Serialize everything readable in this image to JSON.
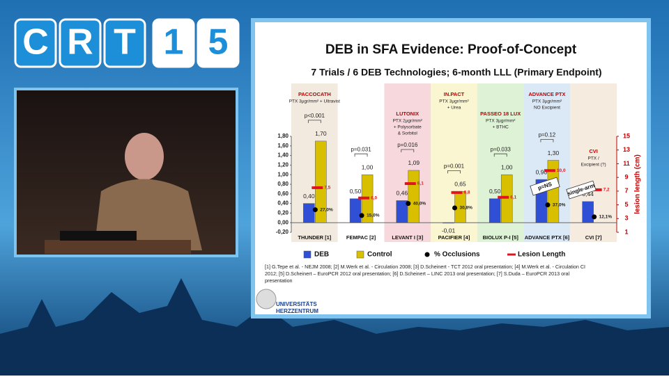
{
  "logo": [
    "C",
    "R",
    "T",
    "1",
    "5"
  ],
  "slide": {
    "title": "DEB in SFA Evidence: Proof-of-Concept",
    "subtitle": "7 Trials / 6 DEB Technologies; 6-month LLL (Primary Endpoint)",
    "references": [
      "[1] G.Tepe et al. - NEJM  2008;   [2] M.Werk et al. - Circulation 2008;   [3] D.Scheinert - TCT 2012 oral presentation;   [4] M.Werk et al. - Circulation CI",
      "2012;   [5] D.Scheinert – EuroPCR 2012 oral presentation;   [6] D.Scheinert – LINC 2013 oral presentation;   [7] S.Duda – EuroPCR 2013 oral",
      "presentation"
    ],
    "institution": [
      "UNIVERSITÄTS",
      "HERZZENTRUM"
    ]
  },
  "chart_data": {
    "type": "bar",
    "categories": [
      "THUNDER [1]",
      "FEMPAC [2]",
      "LEVANT I [3]",
      "PACIFIER [4]",
      "BIOLUX P-I [5]",
      "ADVANCE PTX [6]",
      "CVI [7]"
    ],
    "panel_colors": [
      "#f3eadf",
      "#ffffff",
      "#f7d9dd",
      "#fbf6d2",
      "#def3d6",
      "#dbe8f6",
      "#f5ebdf"
    ],
    "trial_info": [
      {
        "title": "PACCOCATH",
        "lines": [
          "PTX 3µgr/mm² + Ultravist"
        ]
      },
      null,
      {
        "title": "LUTONIX",
        "lines": [
          "PTX 2µgr/mm²",
          "+ Polysorbate",
          "& Sorbitol"
        ]
      },
      {
        "title": "IN.PACT",
        "lines": [
          "PTX 3µgr/mm²",
          "+ Urea"
        ]
      },
      {
        "title": "PASSEO 18 LUX",
        "lines": [
          "PTX 3µgr/mm²",
          "+ BTHC"
        ]
      },
      {
        "title": "ADVANCE PTX",
        "lines": [
          "PTX 3µgr/mm²",
          "NO Excipient"
        ]
      },
      {
        "title": "CVI",
        "lines": [
          "PTX /",
          "Excipient (?)"
        ]
      }
    ],
    "p_values": [
      "p<0.001",
      "p=0.031",
      "p=0.016",
      "p=0.001",
      "p=0.033",
      "p=0.12",
      null
    ],
    "annotations": [
      "p=NS",
      "single-arm"
    ],
    "series": [
      {
        "name": "DEB",
        "marker": "bar",
        "color": "#2f4fd6",
        "values": [
          0.4,
          0.5,
          0.46,
          -0.01,
          0.5,
          0.9,
          0.44
        ],
        "value_labels": [
          "0,40",
          "0,50",
          "0,46",
          "-0,01",
          "0,50",
          "0,90",
          "0,44"
        ]
      },
      {
        "name": "Control",
        "marker": "bar",
        "color": "#d8bf00",
        "values": [
          1.7,
          1.0,
          1.09,
          0.65,
          1.0,
          1.3,
          null
        ],
        "value_labels": [
          "1,70",
          "1,00",
          "1,09",
          "0,65",
          "1,00",
          "1,30",
          null
        ]
      },
      {
        "name": "% Occlusions",
        "marker": "dot",
        "color": "#000000",
        "values": [
          0.27,
          0.15,
          0.4,
          0.308,
          null,
          0.37,
          0.121
        ],
        "value_labels": [
          "27,0%",
          "15,0%",
          "40,0%",
          "30,8%",
          null,
          "37,0%",
          "12,1%"
        ]
      },
      {
        "name": "Lesion Length",
        "marker": "dash",
        "axis": "y2",
        "color": "#e0141e",
        "values": [
          7.5,
          6.0,
          8.1,
          6.8,
          6.1,
          10.0,
          7.2
        ],
        "value_labels": [
          "7,5",
          "6,0",
          "8,1",
          "6,8",
          "6,1",
          "10,0",
          "7,2"
        ]
      }
    ],
    "ylim": [
      -0.2,
      1.8
    ],
    "yticks": [
      {
        "value": 1.8,
        "label": "1,80"
      },
      {
        "value": 1.6,
        "label": "1,60"
      },
      {
        "value": 1.4,
        "label": "1,40"
      },
      {
        "value": 1.2,
        "label": "1,20"
      },
      {
        "value": 1.0,
        "label": "1,00"
      },
      {
        "value": 0.8,
        "label": "0,80"
      },
      {
        "value": 0.6,
        "label": "0,60"
      },
      {
        "value": 0.4,
        "label": "0,40"
      },
      {
        "value": 0.2,
        "label": "0,20"
      },
      {
        "value": 0.0,
        "label": "0,00"
      },
      {
        "value": -0.2,
        "label": "-0,20"
      }
    ],
    "y2lim": [
      1,
      15
    ],
    "y2ticks": [
      15,
      13,
      11,
      9,
      7,
      5,
      3,
      1
    ],
    "y2label": "lesion length (cm)"
  }
}
